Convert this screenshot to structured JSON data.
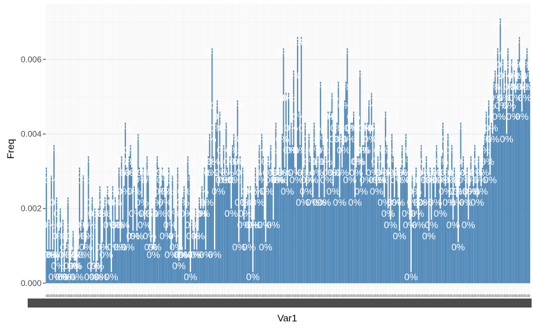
{
  "chart_data": {
    "type": "bar",
    "xlabel": "Var1",
    "ylabel": "Freq",
    "ylim": [
      -0.0003,
      0.0075
    ],
    "y_ticks": [
      0,
      0.002,
      0.004,
      0.006
    ],
    "y_tick_labels": [
      "0.000",
      "0.002",
      "0.004",
      "0.006"
    ],
    "bar_label_text": "0%",
    "grid": true,
    "legend": "none",
    "x_tick_labels_overplotted": true,
    "values": [
      0.0031,
      0.0009,
      0.0017,
      0.0009,
      0.0029,
      0.0009,
      0.0037,
      0.0003,
      0.0023,
      0.0006,
      0.0014,
      0.002,
      0.0003,
      0.0017,
      0.0003,
      0.0009,
      0.0011,
      0.0023,
      0.0003,
      0.0006,
      0.0009,
      0.0014,
      0.0006,
      0.0006,
      0.0003,
      0.0009,
      0.0031,
      0.0014,
      0.0017,
      0.0029,
      0.0009,
      0.0011,
      0.0014,
      0.0034,
      0.0017,
      0.0003,
      0.0023,
      0.0006,
      0.002,
      0.0003,
      0.0006,
      0.002,
      0.0026,
      0.0003,
      0.0011,
      0.002,
      0.0023,
      0.0009,
      0.0026,
      0.0023,
      0.0017,
      0.0003,
      0.0026,
      0.0011,
      0.0023,
      0.0017,
      0.0017,
      0.0031,
      0.0011,
      0.0034,
      0.0017,
      0.0026,
      0.0043,
      0.0031,
      0.0011,
      0.0034,
      0.0037,
      0.0031,
      0.0014,
      0.0026,
      0.002,
      0.0014,
      0.004,
      0.0031,
      0.0029,
      0.0023,
      0.0031,
      0.0017,
      0.002,
      0.0034,
      0.0029,
      0.0014,
      0.0011,
      0.002,
      0.0009,
      0.0011,
      0.0023,
      0.0034,
      0.0031,
      0.002,
      0.0026,
      0.0031,
      0.0029,
      0.0023,
      0.0014,
      0.0026,
      0.0031,
      0.0017,
      0.0009,
      0.0029,
      0.002,
      0.0014,
      0.0011,
      0.0031,
      0.0006,
      0.0009,
      0.0009,
      0.0023,
      0.0026,
      0.0009,
      0.002,
      0.0034,
      0.0029,
      0.0003,
      0.0017,
      0.0014,
      0.0009,
      0.002,
      0.0009,
      0.0014,
      0.0023,
      0.002,
      0.0026,
      0.002,
      0.0031,
      0.0009,
      0.0023,
      0.0034,
      0.004,
      0.0031,
      0.0063,
      0.0034,
      0.0009,
      0.0043,
      0.0049,
      0.0026,
      0.0046,
      0.0031,
      0.0029,
      0.0037,
      0.0029,
      0.0043,
      0.0031,
      0.0029,
      0.0034,
      0.002,
      0.0037,
      0.004,
      0.0029,
      0.0034,
      0.0049,
      0.0011,
      0.0034,
      0.0023,
      0.0031,
      0.0017,
      0.002,
      0.0023,
      0.0026,
      0.0011,
      0.0026,
      0.0017,
      0.0003,
      0.0017,
      0.0031,
      0.0026,
      0.0023,
      0.0037,
      0.0029,
      0.004,
      0.0034,
      0.0017,
      0.0011,
      0.0026,
      0.0034,
      0.0031,
      0.0037,
      0.0029,
      0.0017,
      0.0031,
      0.0043,
      0.0029,
      0.0029,
      0.0031,
      0.0029,
      0.004,
      0.0063,
      0.0031,
      0.0051,
      0.0026,
      0.0051,
      0.0037,
      0.0043,
      0.0037,
      0.0057,
      0.0031,
      0.0029,
      0.0066,
      0.0046,
      0.0037,
      0.0066,
      0.0023,
      0.0031,
      0.0043,
      0.0026,
      0.0029,
      0.004,
      0.0034,
      0.0029,
      0.0023,
      0.0043,
      0.0037,
      0.0031,
      0.0034,
      0.0023,
      0.0054,
      0.004,
      0.0037,
      0.0023,
      0.0034,
      0.0029,
      0.0046,
      0.0031,
      0.0046,
      0.0051,
      0.0026,
      0.0031,
      0.004,
      0.0043,
      0.0054,
      0.0023,
      0.004,
      0.0031,
      0.0037,
      0.0049,
      0.0054,
      0.0063,
      0.004,
      0.0029,
      0.0043,
      0.0043,
      0.0046,
      0.0023,
      0.0031,
      0.0034,
      0.0034,
      0.0057,
      0.0026,
      0.0037,
      0.0037,
      0.0043,
      0.0029,
      0.0043,
      0.0049,
      0.004,
      0.0051,
      0.0031,
      0.0043,
      0.0029,
      0.0026,
      0.0034,
      0.0029,
      0.0037,
      0.0029,
      0.0031,
      0.0023,
      0.0046,
      0.0037,
      0.002,
      0.0031,
      0.0017,
      0.004,
      0.0034,
      0.0023,
      0.0031,
      0.0029,
      0.0023,
      0.0014,
      0.0031,
      0.0037,
      0.0029,
      0.0031,
      0.004,
      0.0034,
      0.002,
      0.0017,
      0.0003,
      0.0029,
      0.0023,
      0.0026,
      0.0031,
      0.002,
      0.0017,
      0.0023,
      0.0037,
      0.0029,
      0.0031,
      0.0023,
      0.0034,
      0.0029,
      0.0014,
      0.0031,
      0.0017,
      0.0029,
      0.0031,
      0.0023,
      0.0037,
      0.0031,
      0.0029,
      0.002,
      0.0034,
      0.0043,
      0.0029,
      0.0026,
      0.0031,
      0.004,
      0.0023,
      0.0029,
      0.0037,
      0.0017,
      0.0031,
      0.0026,
      0.0023,
      0.0011,
      0.0026,
      0.0043,
      0.0031,
      0.0034,
      0.0029,
      0.0023,
      0.0031,
      0.0017,
      0.0026,
      0.0034,
      0.0029,
      0.0026,
      0.0037,
      0.0031,
      0.0023,
      0.0034,
      0.0029,
      0.0026,
      0.0031,
      0.0037,
      0.004,
      0.0046,
      0.0034,
      0.0049,
      0.0029,
      0.0043,
      0.004,
      0.0054,
      0.0057,
      0.0051,
      0.0063,
      0.0046,
      0.0071,
      0.0049,
      0.006,
      0.0051,
      0.0057,
      0.004,
      0.0063,
      0.0049,
      0.0054,
      0.006,
      0.0046,
      0.0057,
      0.0051,
      0.0054,
      0.006,
      0.0066,
      0.0057,
      0.0046,
      0.0054,
      0.0051,
      0.006,
      0.0063,
      0.0057,
      0.0054
    ]
  }
}
